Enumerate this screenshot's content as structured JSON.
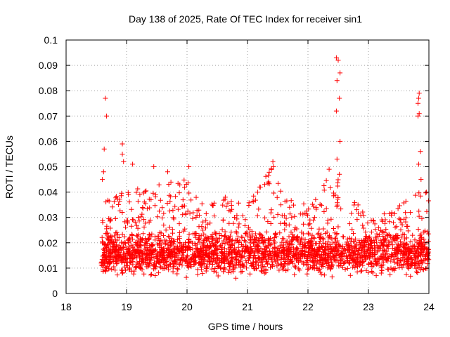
{
  "chart_data": {
    "type": "scatter",
    "title": "Day 138 of 2025, Rate Of TEC Index for receiver sin1",
    "xlabel": "GPS time / hours",
    "ylabel": "ROTI / TECUs",
    "xlim": [
      18,
      24
    ],
    "ylim": [
      0,
      0.1
    ],
    "grid": true,
    "marker": "+",
    "marker_color": "#ff0000",
    "x_ticks": [
      18,
      19,
      20,
      21,
      22,
      23,
      24
    ],
    "x_tick_labels": [
      "18",
      "19",
      "20",
      "21",
      "22",
      "23",
      "24"
    ],
    "y_ticks": [
      0,
      0.01,
      0.02,
      0.03,
      0.04,
      0.05,
      0.06,
      0.07,
      0.08,
      0.09,
      0.1
    ],
    "y_tick_labels": [
      "0",
      "0.01",
      "0.02",
      "0.03",
      "0.04",
      "0.05",
      "0.06",
      "0.07",
      "0.08",
      "0.09",
      "0.1"
    ],
    "series": [
      {
        "name": "ROTI",
        "band_start_hour": 18.58,
        "band_end_hour": 24.0,
        "typical_band": [
          0.005,
          0.03
        ],
        "typical_center": 0.014,
        "notable_points": [
          {
            "x": 18.65,
            "y": 0.077
          },
          {
            "x": 18.67,
            "y": 0.07
          },
          {
            "x": 18.63,
            "y": 0.057
          },
          {
            "x": 18.62,
            "y": 0.048
          },
          {
            "x": 18.6,
            "y": 0.045
          },
          {
            "x": 18.93,
            "y": 0.059
          },
          {
            "x": 18.93,
            "y": 0.055
          },
          {
            "x": 18.95,
            "y": 0.052
          },
          {
            "x": 19.1,
            "y": 0.051
          },
          {
            "x": 19.45,
            "y": 0.05
          },
          {
            "x": 19.68,
            "y": 0.048
          },
          {
            "x": 20.03,
            "y": 0.05
          },
          {
            "x": 21.42,
            "y": 0.052
          },
          {
            "x": 21.43,
            "y": 0.05
          },
          {
            "x": 22.35,
            "y": 0.049
          },
          {
            "x": 22.47,
            "y": 0.093
          },
          {
            "x": 22.5,
            "y": 0.092
          },
          {
            "x": 22.53,
            "y": 0.087
          },
          {
            "x": 22.48,
            "y": 0.084
          },
          {
            "x": 22.52,
            "y": 0.077
          },
          {
            "x": 22.47,
            "y": 0.072
          },
          {
            "x": 22.53,
            "y": 0.06
          },
          {
            "x": 22.48,
            "y": 0.053
          },
          {
            "x": 22.52,
            "y": 0.047
          },
          {
            "x": 23.84,
            "y": 0.079
          },
          {
            "x": 23.83,
            "y": 0.077
          },
          {
            "x": 23.82,
            "y": 0.075
          },
          {
            "x": 23.84,
            "y": 0.071
          },
          {
            "x": 23.82,
            "y": 0.07
          },
          {
            "x": 23.86,
            "y": 0.056
          },
          {
            "x": 23.83,
            "y": 0.051
          },
          {
            "x": 23.87,
            "y": 0.045
          },
          {
            "x": 23.96,
            "y": 0.04
          }
        ],
        "activity_envelope": [
          {
            "hour": 18.6,
            "upper": 0.036
          },
          {
            "hour": 19.0,
            "upper": 0.041
          },
          {
            "hour": 19.3,
            "upper": 0.042
          },
          {
            "hour": 19.7,
            "upper": 0.045
          },
          {
            "hour": 20.0,
            "upper": 0.045
          },
          {
            "hour": 20.3,
            "upper": 0.035
          },
          {
            "hour": 20.6,
            "upper": 0.04
          },
          {
            "hour": 21.0,
            "upper": 0.037
          },
          {
            "hour": 21.4,
            "upper": 0.052
          },
          {
            "hour": 21.6,
            "upper": 0.039
          },
          {
            "hour": 22.0,
            "upper": 0.035
          },
          {
            "hour": 22.4,
            "upper": 0.048
          },
          {
            "hour": 22.7,
            "upper": 0.04
          },
          {
            "hour": 23.0,
            "upper": 0.029
          },
          {
            "hour": 23.4,
            "upper": 0.033
          },
          {
            "hour": 23.8,
            "upper": 0.04
          },
          {
            "hour": 24.0,
            "upper": 0.04
          }
        ]
      }
    ]
  }
}
